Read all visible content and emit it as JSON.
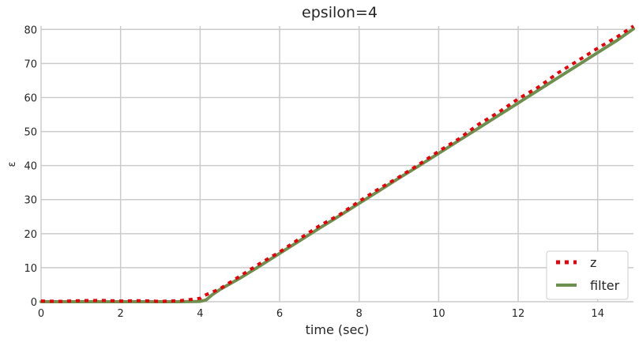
{
  "colors": {
    "background": "#ffffff",
    "plot_background": "#ffffff",
    "grid": "#cbcbcb",
    "z": "#e8000b",
    "filter": "#6d904f",
    "text": "#262626"
  },
  "chart_data": {
    "type": "line",
    "title": "epsilon=4",
    "xlabel": "time (sec)",
    "ylabel": "ε",
    "xlim": [
      0,
      14.9
    ],
    "ylim": [
      0,
      81
    ],
    "xticks": [
      0,
      2,
      4,
      6,
      8,
      10,
      12,
      14
    ],
    "yticks": [
      0,
      10,
      20,
      30,
      40,
      50,
      60,
      70,
      80
    ],
    "grid": true,
    "legend_position": "lower-right",
    "series": [
      {
        "name": "z",
        "style": "dotted",
        "color": "#e8000b",
        "x": [
          0,
          0.5,
          1.0,
          1.5,
          2.0,
          2.5,
          3.0,
          3.5,
          4.0,
          4.1,
          4.5,
          5.0,
          5.5,
          6.0,
          6.5,
          7.0,
          7.5,
          8.0,
          8.5,
          9.0,
          9.5,
          10.0,
          10.5,
          11.0,
          11.5,
          12.0,
          12.5,
          13.0,
          13.5,
          14.0,
          14.5,
          14.9
        ],
        "y": [
          0.2,
          0.1,
          0.3,
          0.4,
          0.2,
          0.3,
          0.1,
          0.3,
          1.0,
          1.8,
          3.8,
          7.5,
          11.2,
          14.6,
          18.5,
          22.3,
          25.5,
          29.5,
          33.2,
          36.6,
          40.3,
          44.2,
          47.8,
          52.1,
          55.6,
          59.6,
          63.0,
          67.2,
          70.8,
          74.5,
          77.9,
          81.0
        ]
      },
      {
        "name": "filter",
        "style": "solid",
        "color": "#6d904f",
        "x": [
          0,
          0.5,
          1.0,
          1.5,
          2.0,
          2.5,
          3.0,
          3.5,
          4.0,
          4.15,
          4.3,
          4.5,
          5.0,
          5.5,
          6.0,
          6.5,
          7.0,
          7.5,
          8.0,
          8.5,
          9.0,
          9.5,
          10.0,
          10.5,
          11.0,
          11.5,
          12.0,
          12.5,
          13.0,
          13.5,
          14.0,
          14.5,
          14.9
        ],
        "y": [
          0,
          0,
          0,
          0,
          0,
          0,
          0,
          0,
          0.1,
          0.5,
          2.0,
          3.6,
          6.9,
          10.5,
          14.2,
          17.9,
          21.6,
          25.2,
          28.9,
          32.6,
          36.3,
          39.9,
          43.6,
          47.3,
          51.0,
          54.7,
          58.4,
          62.1,
          65.8,
          69.5,
          73.2,
          76.9,
          80.2
        ]
      }
    ]
  }
}
